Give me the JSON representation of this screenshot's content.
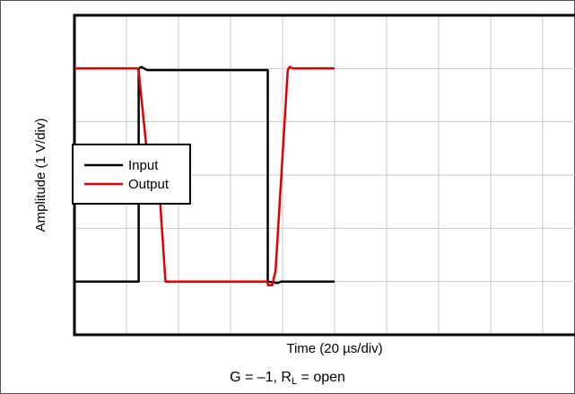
{
  "chart_data": {
    "type": "line",
    "title": "",
    "xlabel": "Time (20 µs/div)",
    "ylabel": "Amplitude (1 V/div)",
    "x_divisions": 10,
    "y_divisions": 6,
    "xlim": [
      0,
      200
    ],
    "ylim": [
      -3,
      3
    ],
    "grid": true,
    "legend_position": "middle-left",
    "series": [
      {
        "name": "Input",
        "color": "#000000",
        "points": [
          [
            0,
            -2
          ],
          [
            24.7,
            -2
          ],
          [
            24.7,
            2
          ],
          [
            25.7,
            2.03
          ],
          [
            28,
            1.97
          ],
          [
            74.3,
            1.97
          ],
          [
            74.3,
            -2
          ],
          [
            78,
            -2.03
          ],
          [
            79.5,
            -2
          ],
          [
            100,
            -2
          ]
        ]
      },
      {
        "name": "Output",
        "color": "#e00000",
        "points": [
          [
            0,
            2
          ],
          [
            24.6,
            2
          ],
          [
            28.7,
            0.03
          ],
          [
            29.4,
            -0.35
          ],
          [
            30.5,
            -0.45
          ],
          [
            32,
            -0.45
          ],
          [
            33,
            -0.55
          ],
          [
            35,
            -2
          ],
          [
            74.2,
            -2
          ],
          [
            74.4,
            -2.07
          ],
          [
            76,
            -2.07
          ],
          [
            77.3,
            -1.8
          ],
          [
            82,
            1.97
          ],
          [
            82.7,
            2.03
          ],
          [
            84,
            2
          ],
          [
            100,
            2
          ]
        ]
      }
    ]
  },
  "caption": {
    "prefix": "G = –1, R",
    "subscript": "L",
    "suffix": " = open"
  }
}
